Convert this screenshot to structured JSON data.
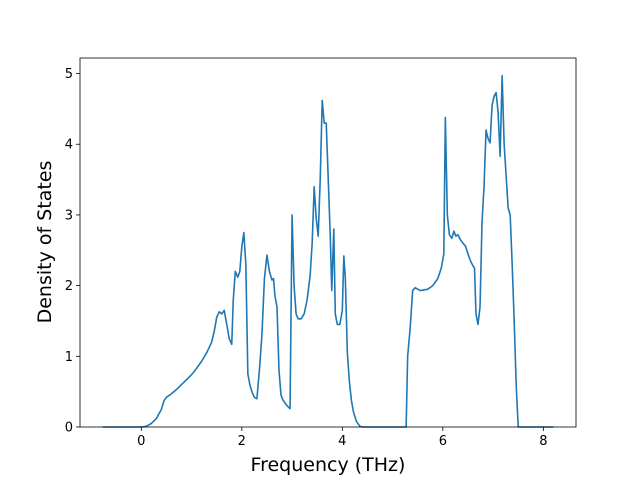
{
  "chart_data": {
    "type": "line",
    "xlabel": "Frequency (THz)",
    "ylabel": "Density of States",
    "x": [
      -0.77,
      0,
      0.1,
      0.2,
      0.3,
      0.4,
      0.45,
      0.5,
      0.6,
      0.7,
      0.8,
      0.9,
      1.0,
      1.1,
      1.2,
      1.3,
      1.4,
      1.45,
      1.5,
      1.55,
      1.6,
      1.65,
      1.7,
      1.75,
      1.8,
      1.83,
      1.87,
      1.92,
      1.96,
      2.0,
      2.04,
      2.08,
      2.12,
      2.16,
      2.2,
      2.25,
      2.3,
      2.35,
      2.4,
      2.45,
      2.5,
      2.55,
      2.6,
      2.63,
      2.66,
      2.7,
      2.74,
      2.78,
      2.82,
      2.9,
      2.96,
      3.0,
      3.04,
      3.08,
      3.12,
      3.18,
      3.24,
      3.3,
      3.36,
      3.4,
      3.44,
      3.48,
      3.52,
      3.56,
      3.6,
      3.64,
      3.68,
      3.72,
      3.76,
      3.79,
      3.83,
      3.86,
      3.9,
      3.95,
      4.0,
      4.03,
      4.06,
      4.1,
      4.14,
      4.18,
      4.22,
      4.28,
      4.35,
      4.4,
      5.27,
      5.3,
      5.35,
      5.4,
      5.45,
      5.5,
      5.55,
      5.7,
      5.8,
      5.9,
      5.97,
      6.02,
      6.05,
      6.09,
      6.13,
      6.18,
      6.22,
      6.26,
      6.3,
      6.35,
      6.4,
      6.45,
      6.5,
      6.55,
      6.6,
      6.63,
      6.66,
      6.7,
      6.74,
      6.78,
      6.82,
      6.86,
      6.9,
      6.94,
      6.98,
      7.02,
      7.06,
      7.1,
      7.14,
      7.18,
      7.22,
      7.26,
      7.3,
      7.34,
      7.38,
      7.42,
      7.46,
      7.5,
      8.2
    ],
    "values": [
      0,
      0,
      0.01,
      0.05,
      0.12,
      0.25,
      0.37,
      0.42,
      0.47,
      0.53,
      0.6,
      0.67,
      0.74,
      0.83,
      0.93,
      1.05,
      1.2,
      1.35,
      1.55,
      1.63,
      1.6,
      1.65,
      1.45,
      1.25,
      1.17,
      1.8,
      2.2,
      2.12,
      2.2,
      2.55,
      2.75,
      2.3,
      0.75,
      0.6,
      0.5,
      0.42,
      0.4,
      0.8,
      1.3,
      2.1,
      2.43,
      2.2,
      2.08,
      2.1,
      1.85,
      1.7,
      0.8,
      0.45,
      0.38,
      0.3,
      0.26,
      3.0,
      2.0,
      1.6,
      1.53,
      1.53,
      1.6,
      1.8,
      2.15,
      2.6,
      3.4,
      2.95,
      2.7,
      3.5,
      4.62,
      4.3,
      4.3,
      3.5,
      2.7,
      1.93,
      2.8,
      1.6,
      1.45,
      1.45,
      1.65,
      2.42,
      2.1,
      1.05,
      0.65,
      0.38,
      0.22,
      0.08,
      0.01,
      0,
      0,
      1.0,
      1.4,
      1.93,
      1.97,
      1.95,
      1.93,
      1.95,
      2.0,
      2.1,
      2.25,
      2.45,
      4.38,
      3.0,
      2.72,
      2.67,
      2.77,
      2.7,
      2.72,
      2.65,
      2.6,
      2.56,
      2.45,
      2.35,
      2.28,
      2.25,
      1.6,
      1.45,
      1.7,
      2.9,
      3.4,
      4.2,
      4.08,
      4.02,
      4.55,
      4.68,
      4.73,
      4.45,
      3.83,
      4.97,
      4.0,
      3.55,
      3.1,
      3.0,
      2.3,
      1.5,
      0.6,
      0,
      0
    ],
    "color": "#1f77b4",
    "xlim": [
      -1.22,
      8.65
    ],
    "xticks": [
      0,
      2,
      4,
      6,
      8
    ],
    "ylim": [
      0,
      5.22
    ],
    "yticks": [
      0,
      1,
      2,
      3,
      4,
      5
    ]
  }
}
